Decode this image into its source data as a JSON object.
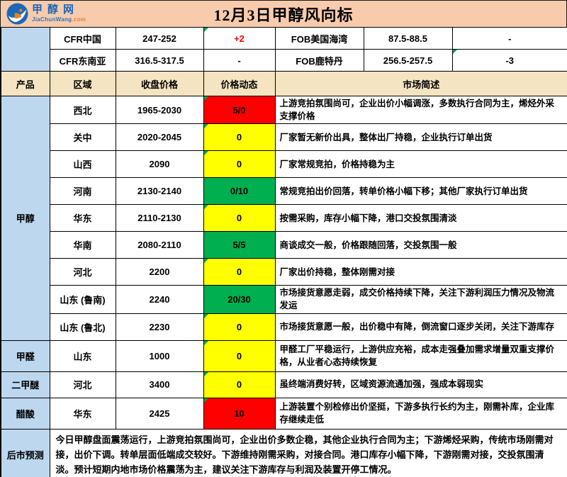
{
  "banner": {
    "title": "12月3日甲醇风向标",
    "logo_cn": "甲醇网",
    "logo_en": "JiaChunWang",
    "logo_domain": ".com"
  },
  "intl_rows": [
    {
      "left_label": "CFR中国",
      "left_value": "247-252",
      "left_change": "+2",
      "left_change_up": true,
      "right_label": "FOB美国海湾",
      "right_value": "87.5-88.5",
      "right_change": "-"
    },
    {
      "left_label": "CFR东南亚",
      "left_value": "316.5-317.5",
      "left_change": "-",
      "left_change_up": false,
      "right_label": "FOB鹿特丹",
      "right_value": "256.5-257.5",
      "right_change": "-3"
    }
  ],
  "headers": [
    "产品",
    "区域",
    "收盘价格",
    "价格动态",
    "市场简述"
  ],
  "sections": [
    {
      "product": "甲醇",
      "rows": [
        {
          "region": "西北",
          "price": "1965-2030",
          "change": "5/0",
          "change_color": "red",
          "summary": "上游竞拍氛围尚可，企业出价小幅调涨，多数执行合同为主，烯烃外采支撑价格"
        },
        {
          "region": "关中",
          "price": "2020-2045",
          "change": "0",
          "change_color": "yellow",
          "summary": "厂家暂无新价出具，整体出厂持稳，企业执行订单出货"
        },
        {
          "region": "山西",
          "price": "2090",
          "change": "0",
          "change_color": "yellow",
          "summary": "厂家常规竞拍，价格持稳为主"
        },
        {
          "region": "河南",
          "price": "2130-2140",
          "change": "0/10",
          "change_color": "green",
          "summary": "常规竞拍出价回落，转单价格小幅下移；其他厂家执行订单出货"
        },
        {
          "region": "华东",
          "price": "2110-2130",
          "change": "0",
          "change_color": "yellow",
          "summary": "按需采购，库存小幅下降，港口交投氛围清淡"
        },
        {
          "region": "华南",
          "price": "2080-2110",
          "change": "5/5",
          "change_color": "green",
          "summary": "商谈成交一般，价格跟随回落，交投氛围一般"
        },
        {
          "region": "河北",
          "price": "2200",
          "change": "0",
          "change_color": "yellow",
          "summary": "厂家出价持稳，整体刚需对接"
        },
        {
          "region": "山东 (鲁南)",
          "price": "2240",
          "change": "20/30",
          "change_color": "green",
          "summary": "市场接货意愿走弱，成交价格持续下降，关注下游利润压力情况及物流发运"
        },
        {
          "region": "山东 (鲁北)",
          "price": "2230",
          "change": "0",
          "change_color": "yellow",
          "summary": "市场接货意愿一般，出价稳中有降，倒流窗口逐步关闭，关注下游库存"
        }
      ]
    },
    {
      "product": "甲醛",
      "rows": [
        {
          "region": "山东",
          "price": "1000",
          "change": "0",
          "change_color": "yellow",
          "summary": "甲醛工厂平稳运行，上游供应充裕，成本走强叠加需求增量双重支撑价格，从业者心态持续恢复"
        }
      ]
    },
    {
      "product": "二甲醚",
      "rows": [
        {
          "region": "河北",
          "price": "3400",
          "change": "0",
          "change_color": "yellow",
          "summary": "虽终端消费好转，区域资源流通加强，强成本弱现实"
        }
      ]
    },
    {
      "product": "醋酸",
      "rows": [
        {
          "region": "华东",
          "price": "2425",
          "change": "10",
          "change_color": "red",
          "summary": "上游装置个别检修出价坚挺，下游多执行长约为主，刚需补库，企业库存继续走低"
        }
      ]
    }
  ],
  "forecast": {
    "label": "后市预测",
    "text": "今日甲醇盘面震荡运行，上游竞拍氛围尚可，企业出价多数企稳，其他企业执行合同为主；下游烯烃采购，传统市场刚需对接，出价下调。转单层面低端成交较好。下游维持刚需采购，对接合同。港口库存小幅下降，下游刚需对接，交投氛围清淡。预计短期内地市场价格震荡为主，建议关注下游库存与利润及装置开停工情况。"
  },
  "colors": {
    "banner_bg": "#F8CBAD",
    "product_col_bg": "#BDD7EE",
    "header_bg": "#F5E4C1",
    "up_red": "#FF0000",
    "flat_yellow": "#FFFF00",
    "down_green": "#00B050",
    "flag_green": "#00A650",
    "logo_blue": "#1C68B8",
    "logo_orange": "#ED7D31"
  }
}
